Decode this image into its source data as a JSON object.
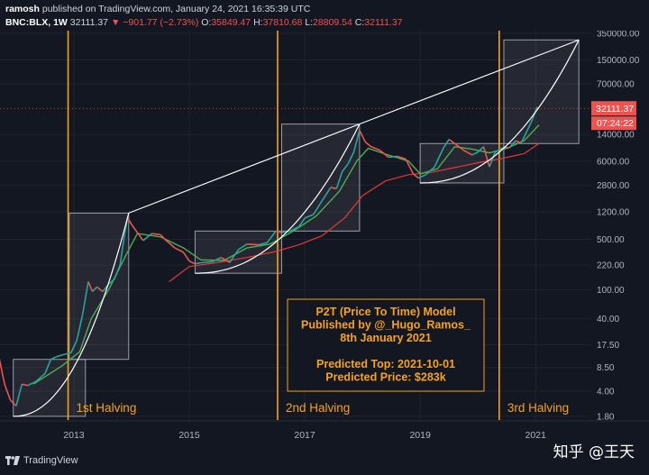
{
  "header": {
    "publisher": "ramosh",
    "published_text": "published on TradingView.com, January 24, 2021 16:35:39 UTC",
    "symbol": "BNC:BLX, 1W",
    "last": "32111.37",
    "change": "−901.77 (−2.73%)",
    "open_label": "O:",
    "open": "35849.47",
    "high_label": "H:",
    "high": "37810.68",
    "low_label": "L:",
    "low": "28809.54",
    "close_label": "C:",
    "close": "32111.37"
  },
  "chart_data": {
    "type": "line",
    "scale": "log",
    "x_ticks": [
      "2013",
      "2015",
      "2017",
      "2019",
      "2021"
    ],
    "y_ticks": [
      "350000.00",
      "150000.00",
      "70000.00",
      "32111.37",
      "14000.00",
      "6000.00",
      "2800.00",
      "1200.00",
      "500.00",
      "220.00",
      "100.00",
      "40.00",
      "17.50",
      "8.50",
      "4.00",
      "1.80"
    ],
    "ylim": [
      1.6,
      380000
    ],
    "price_label": "32111.37",
    "timer_label": "07:24:22",
    "halvings": [
      {
        "label": "1st Halving",
        "date": 2012.9
      },
      {
        "label": "2nd Halving",
        "date": 2016.53
      },
      {
        "label": "3rd Halving",
        "date": 2020.37
      }
    ],
    "annotation": {
      "lines": [
        "P2T (Price To Time) Model",
        "Published by @_Hugo_Ramos_",
        "8th January 2021",
        "",
        "Predicted Top: 2021-10-01",
        "Predicted Price: $283k"
      ]
    },
    "price_series": [
      [
        2011.7,
        12
      ],
      [
        2011.8,
        5
      ],
      [
        2011.9,
        3
      ],
      [
        2012.0,
        2.5
      ],
      [
        2012.1,
        5
      ],
      [
        2012.2,
        4.8
      ],
      [
        2012.35,
        5.5
      ],
      [
        2012.5,
        7
      ],
      [
        2012.6,
        11
      ],
      [
        2012.7,
        12
      ],
      [
        2012.85,
        13
      ],
      [
        2012.95,
        13.5
      ],
      [
        2013.05,
        20
      ],
      [
        2013.15,
        45
      ],
      [
        2013.25,
        130
      ],
      [
        2013.32,
        95
      ],
      [
        2013.4,
        110
      ],
      [
        2013.5,
        95
      ],
      [
        2013.6,
        120
      ],
      [
        2013.7,
        140
      ],
      [
        2013.8,
        220
      ],
      [
        2013.88,
        600
      ],
      [
        2013.93,
        1000
      ],
      [
        2014.0,
        800
      ],
      [
        2014.1,
        620
      ],
      [
        2014.2,
        480
      ],
      [
        2014.35,
        600
      ],
      [
        2014.5,
        580
      ],
      [
        2014.6,
        480
      ],
      [
        2014.75,
        380
      ],
      [
        2014.9,
        330
      ],
      [
        2015.0,
        250
      ],
      [
        2015.1,
        230
      ],
      [
        2015.25,
        240
      ],
      [
        2015.4,
        245
      ],
      [
        2015.55,
        280
      ],
      [
        2015.7,
        240
      ],
      [
        2015.85,
        360
      ],
      [
        2016.0,
        430
      ],
      [
        2016.2,
        420
      ],
      [
        2016.35,
        450
      ],
      [
        2016.5,
        650
      ],
      [
        2016.6,
        620
      ],
      [
        2016.75,
        650
      ],
      [
        2016.9,
        750
      ],
      [
        2017.0,
        980
      ],
      [
        2017.15,
        1100
      ],
      [
        2017.3,
        1700
      ],
      [
        2017.45,
        2600
      ],
      [
        2017.55,
        2500
      ],
      [
        2017.65,
        4300
      ],
      [
        2017.75,
        5500
      ],
      [
        2017.85,
        8000
      ],
      [
        2017.95,
        16000
      ],
      [
        2018.05,
        11000
      ],
      [
        2018.15,
        9500
      ],
      [
        2018.3,
        8500
      ],
      [
        2018.45,
        6800
      ],
      [
        2018.6,
        7000
      ],
      [
        2018.75,
        6400
      ],
      [
        2018.88,
        4000
      ],
      [
        2018.97,
        3500
      ],
      [
        2019.1,
        3900
      ],
      [
        2019.25,
        5000
      ],
      [
        2019.4,
        9000
      ],
      [
        2019.5,
        12000
      ],
      [
        2019.6,
        10500
      ],
      [
        2019.75,
        8500
      ],
      [
        2019.9,
        7300
      ],
      [
        2020.0,
        8000
      ],
      [
        2020.1,
        9500
      ],
      [
        2020.2,
        5000
      ],
      [
        2020.3,
        8000
      ],
      [
        2020.45,
        9300
      ],
      [
        2020.55,
        9200
      ],
      [
        2020.65,
        11500
      ],
      [
        2020.75,
        10700
      ],
      [
        2020.85,
        15500
      ],
      [
        2020.95,
        23000
      ],
      [
        2021.02,
        33000
      ],
      [
        2021.06,
        32111.37
      ]
    ],
    "ma_short_series": [
      [
        2012.3,
        5
      ],
      [
        2012.8,
        9
      ],
      [
        2013.1,
        14
      ],
      [
        2013.3,
        40
      ],
      [
        2013.6,
        100
      ],
      [
        2013.9,
        300
      ],
      [
        2014.1,
        600
      ],
      [
        2014.5,
        540
      ],
      [
        2014.9,
        380
      ],
      [
        2015.2,
        260
      ],
      [
        2015.6,
        255
      ],
      [
        2016.0,
        380
      ],
      [
        2016.4,
        430
      ],
      [
        2016.8,
        650
      ],
      [
        2017.2,
        1050
      ],
      [
        2017.6,
        2300
      ],
      [
        2017.9,
        6000
      ],
      [
        2018.1,
        9000
      ],
      [
        2018.4,
        7500
      ],
      [
        2018.8,
        6000
      ],
      [
        2019.0,
        4000
      ],
      [
        2019.3,
        4700
      ],
      [
        2019.6,
        9500
      ],
      [
        2019.9,
        8800
      ],
      [
        2020.2,
        7800
      ],
      [
        2020.5,
        9000
      ],
      [
        2020.8,
        11500
      ],
      [
        2021.06,
        19000
      ]
    ],
    "ma_long_series": [
      [
        2014.65,
        130
      ],
      [
        2015.0,
        210
      ],
      [
        2015.5,
        240
      ],
      [
        2016.0,
        280
      ],
      [
        2016.5,
        340
      ],
      [
        2016.9,
        420
      ],
      [
        2017.3,
        560
      ],
      [
        2017.7,
        1000
      ],
      [
        2018.0,
        2000
      ],
      [
        2018.4,
        3200
      ],
      [
        2018.8,
        3900
      ],
      [
        2019.2,
        4200
      ],
      [
        2019.6,
        4900
      ],
      [
        2020.0,
        5700
      ],
      [
        2020.4,
        6500
      ],
      [
        2020.8,
        7600
      ],
      [
        2021.06,
        10500
      ]
    ],
    "boxes": [
      {
        "x0": 2011.95,
        "x1": 2013.2,
        "y0": 1.8,
        "y1": 11
      },
      {
        "x0": 2012.92,
        "x1": 2013.95,
        "y0": 11,
        "y1": 1150
      },
      {
        "x0": 2015.1,
        "x1": 2016.6,
        "y0": 170,
        "y1": 650
      },
      {
        "x0": 2016.6,
        "x1": 2017.95,
        "y0": 650,
        "y1": 19500
      },
      {
        "x0": 2019.0,
        "x1": 2020.45,
        "y0": 3000,
        "y1": 10500
      },
      {
        "x0": 2020.45,
        "x1": 2021.75,
        "y0": 10500,
        "y1": 283000
      }
    ],
    "model_curves": [
      {
        "from": [
          2011.95,
          1.8
        ],
        "to": [
          2013.95,
          1150
        ]
      },
      {
        "from": [
          2015.1,
          170
        ],
        "to": [
          2017.95,
          19500
        ]
      },
      {
        "from": [
          2019.0,
          3000
        ],
        "to": [
          2021.75,
          283000
        ]
      }
    ],
    "top_line": {
      "points": [
        [
          2013.95,
          1150
        ],
        [
          2017.95,
          19500
        ],
        [
          2021.75,
          283000
        ]
      ]
    }
  },
  "footer": {
    "brand": "TradingView",
    "watermark": "知乎 @王天"
  },
  "colors": {
    "background": "#131722",
    "grid": "#1f2330",
    "halving": "#f7a21b",
    "price": "#26a69a",
    "price_down": "#ef5350",
    "ma_short": "#4caf50",
    "ma_long": "#e53935",
    "annotation_text": "#f7a21b",
    "box_fill": "rgba(200,200,210,0.10)",
    "box_stroke": "#9a9ea8"
  }
}
